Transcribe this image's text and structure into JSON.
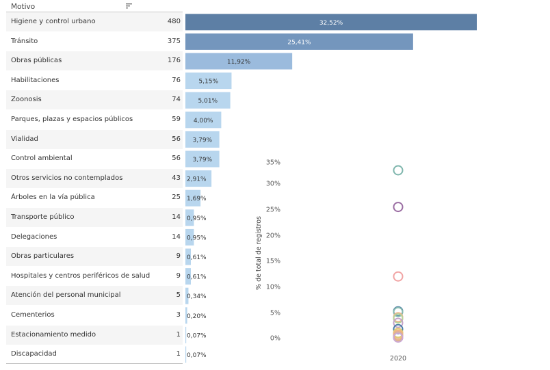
{
  "table": {
    "header": "Motivo"
  },
  "chart_data": [
    {
      "type": "bar",
      "orientation": "horizontal",
      "categories": [
        "Higiene y control urbano",
        "Tránsito",
        "Obras públicas",
        "Habilitaciones",
        "Zoonosis",
        "Parques, plazas y espacios públicos",
        "Vialidad",
        "Control ambiental",
        "Otros servicios no contemplados",
        "Árboles en la vía pública",
        "Transporte público",
        "Delegaciones",
        "Obras particulares",
        "Hospitales y centros periféricos de salud",
        "Atención del personal municipal",
        "Cementerios",
        "Estacionamiento medido",
        "Discapacidad"
      ],
      "counts": [
        "480",
        "375",
        "176",
        "76",
        "74",
        "59",
        "56",
        "56",
        "43",
        "25",
        "14",
        "14",
        "9",
        "9",
        "5",
        "3",
        "1",
        "1"
      ],
      "values": [
        32.52,
        25.41,
        11.92,
        5.15,
        5.01,
        4.0,
        3.79,
        3.79,
        2.91,
        1.69,
        0.95,
        0.95,
        0.61,
        0.61,
        0.34,
        0.2,
        0.07,
        0.07
      ],
      "labels": [
        "32,52%",
        "25,41%",
        "11,92%",
        "5,15%",
        "5,01%",
        "4,00%",
        "3,79%",
        "3,79%",
        "2,91%",
        "1,69%",
        "0,95%",
        "0,95%",
        "0,61%",
        "0,61%",
        "0,34%",
        "0,20%",
        "0,07%",
        "0,07%"
      ],
      "colors": {
        "high": "#5d7fa5",
        "mid_high": "#7496bd",
        "mid": "#9bbbdd",
        "low": "#b8d6ee",
        "label_light": "#ffffff",
        "label_dark": "#333333"
      }
    },
    {
      "type": "scatter",
      "x": [
        "2020"
      ],
      "ylabel": "% de total de registros",
      "yticks": [
        "0%",
        "5%",
        "10%",
        "15%",
        "20%",
        "25%",
        "30%",
        "35%"
      ],
      "ylim": [
        0,
        35
      ],
      "points": [
        {
          "y": 32.52,
          "color": "#7fb6ad"
        },
        {
          "y": 25.41,
          "color": "#9b6ea3"
        },
        {
          "y": 11.92,
          "color": "#f1a4a4"
        },
        {
          "y": 5.15,
          "color": "#4d7fa3"
        },
        {
          "y": 5.01,
          "color": "#86b9b0"
        },
        {
          "y": 4.0,
          "color": "#f0b58a"
        },
        {
          "y": 3.79,
          "color": "#f2a0a0"
        },
        {
          "y": 3.79,
          "color": "#b8d49b"
        },
        {
          "y": 2.91,
          "color": "#c4a3c9"
        },
        {
          "y": 1.69,
          "color": "#4a7ea6"
        },
        {
          "y": 0.95,
          "color": "#5aa08c"
        },
        {
          "y": 0.95,
          "color": "#e7cc74"
        },
        {
          "y": 0.61,
          "color": "#a5c99a"
        },
        {
          "y": 0.61,
          "color": "#f2b582"
        },
        {
          "y": 0.34,
          "color": "#e8a0a0"
        },
        {
          "y": 0.2,
          "color": "#d9c86f"
        },
        {
          "y": 0.07,
          "color": "#94b8d6"
        },
        {
          "y": 0.07,
          "color": "#cfa6d3"
        }
      ]
    }
  ]
}
